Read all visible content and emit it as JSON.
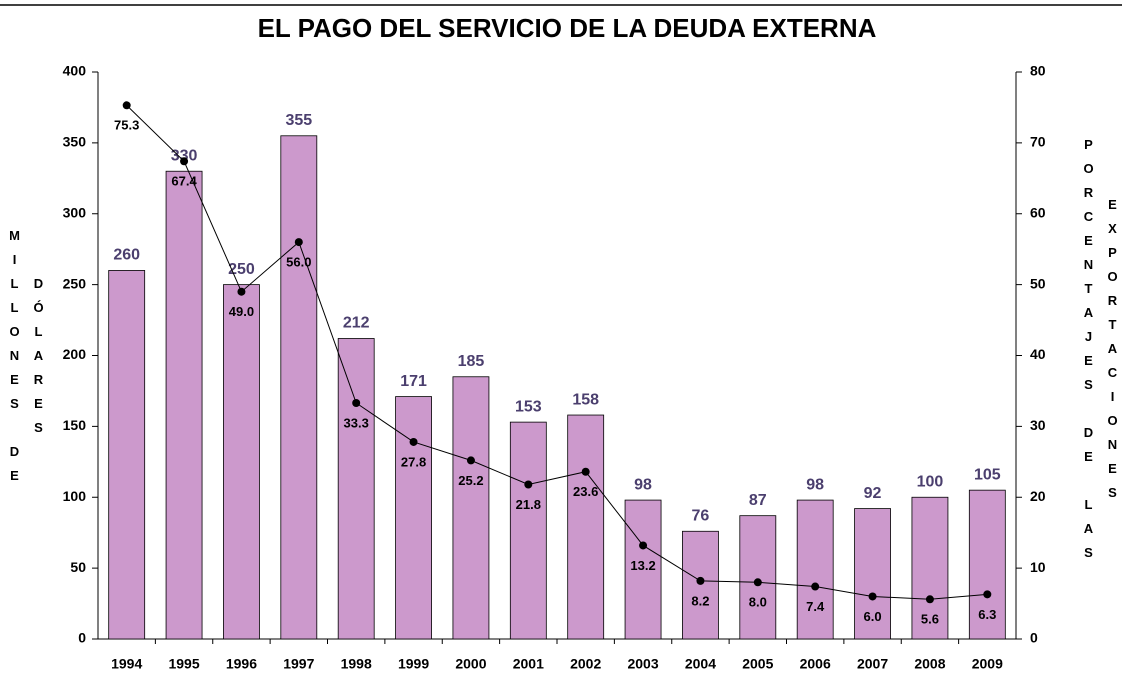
{
  "chart_data": {
    "type": "bar",
    "title": "EL PAGO DEL SERVICIO DE LA DEUDA EXTERNA",
    "ylabel": "MILLONES DE DÓLARES",
    "y2label": "PORCENTAJES DE LAS EXPORTACIONES",
    "categories": [
      "1994",
      "1995",
      "1996",
      "1997",
      "1998",
      "1999",
      "2000",
      "2001",
      "2002",
      "2003",
      "2004",
      "2005",
      "2006",
      "2007",
      "2008",
      "2009"
    ],
    "series": [
      {
        "type": "bar",
        "color": "#cc99cc",
        "label_color": "#4b3f6e",
        "values": [
          260,
          330,
          250,
          355,
          212,
          171,
          185,
          153,
          158,
          98,
          76,
          87,
          98,
          92,
          100,
          105
        ]
      },
      {
        "type": "line",
        "axis": "y2",
        "color": "#000000",
        "values": [
          75.3,
          67.4,
          49.0,
          56.0,
          33.3,
          27.8,
          25.2,
          21.8,
          23.6,
          13.2,
          8.2,
          8.0,
          7.4,
          6.0,
          5.6,
          6.3
        ],
        "value_labels": [
          "75.3",
          "67.4",
          "49.0",
          "56.0",
          "33.3",
          "27.8",
          "25.2",
          "21.8",
          "23.6",
          "13.2",
          "8.2",
          "8.0",
          "7.4",
          "6.0",
          "5.6",
          "6.3"
        ]
      }
    ],
    "ylim": [
      0,
      400
    ],
    "yticks": [
      0,
      50,
      100,
      150,
      200,
      250,
      300,
      350,
      400
    ],
    "y2lim": [
      0,
      80
    ],
    "y2ticks": [
      0,
      10,
      20,
      30,
      40,
      50,
      60,
      70,
      80
    ],
    "grid": false
  }
}
